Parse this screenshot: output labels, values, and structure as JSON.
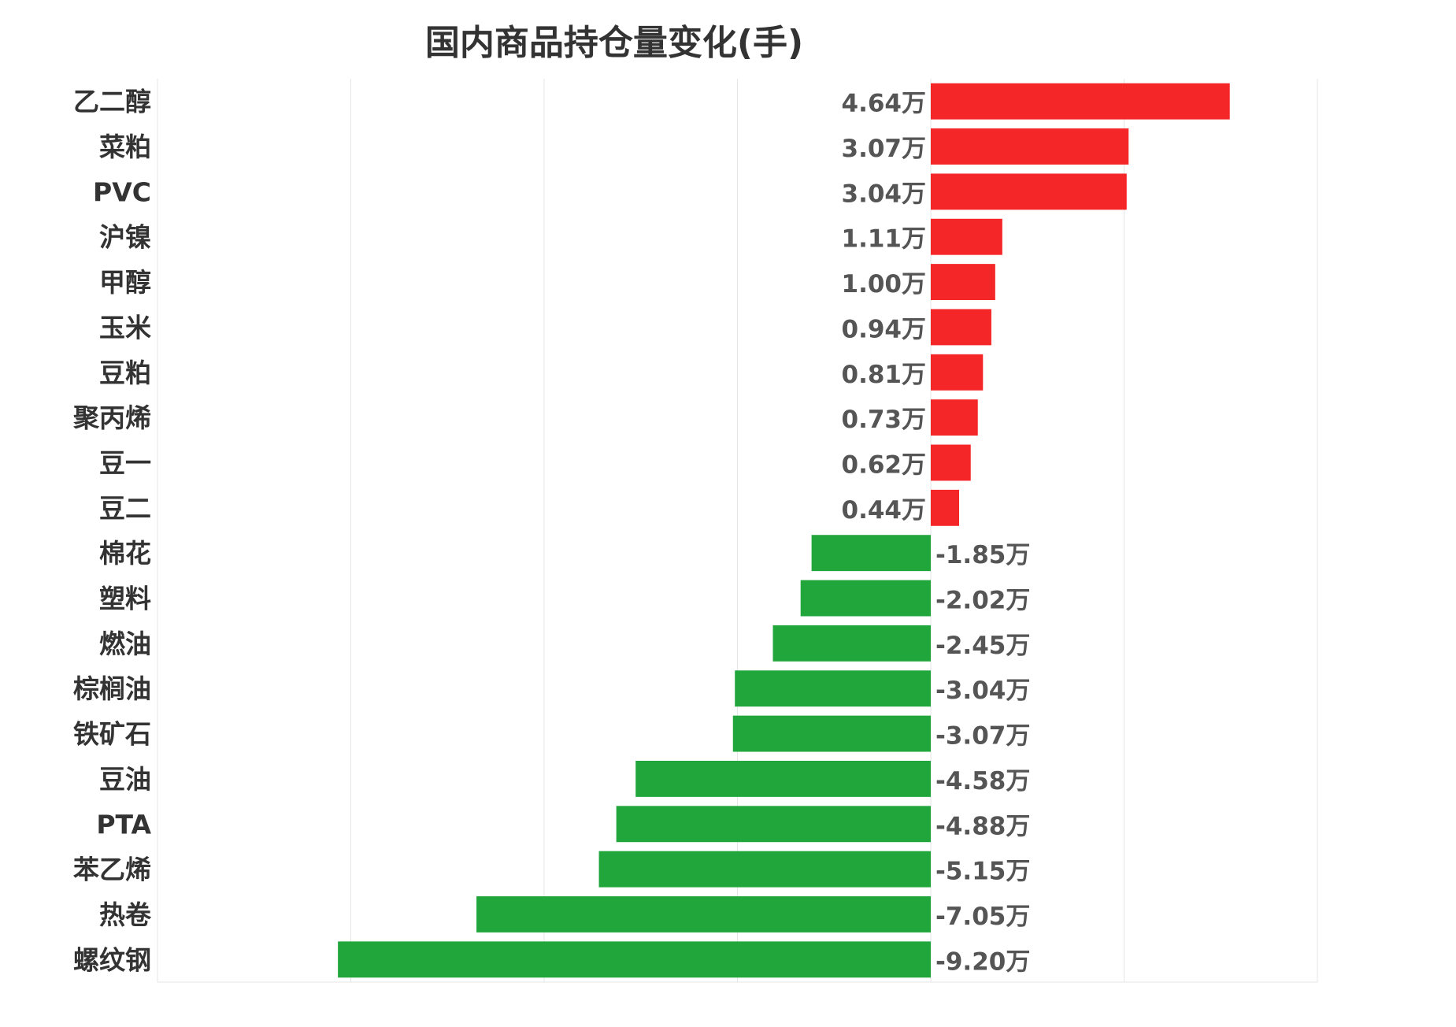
{
  "chart_data": {
    "type": "bar",
    "orientation": "horizontal",
    "title": "国内商品持仓量变化(手)",
    "unit_suffix": "万",
    "categories": [
      "乙二醇",
      "菜粕",
      "PVC",
      "沪镍",
      "甲醇",
      "玉米",
      "豆粕",
      "聚丙烯",
      "豆一",
      "豆二",
      "棉花",
      "塑料",
      "燃油",
      "棕榈油",
      "铁矿石",
      "豆油",
      "PTA",
      "苯乙烯",
      "热卷",
      "螺纹钢"
    ],
    "values": [
      4.64,
      3.07,
      3.04,
      1.11,
      1.0,
      0.94,
      0.81,
      0.73,
      0.62,
      0.44,
      -1.85,
      -2.02,
      -2.45,
      -3.04,
      -3.07,
      -4.58,
      -4.88,
      -5.15,
      -7.05,
      -9.2
    ],
    "value_labels": [
      "4.64万",
      "3.07万",
      "3.04万",
      "1.11万",
      "1.00万",
      "0.94万",
      "0.81万",
      "0.73万",
      "0.62万",
      "0.44万",
      "-1.85万",
      "-2.02万",
      "-2.45万",
      "-3.04万",
      "-3.07万",
      "-4.58万",
      "-4.88万",
      "-5.15万",
      "-7.05万",
      "-9.20万"
    ],
    "xlim": [
      -12,
      6
    ],
    "grid": true,
    "positive_color": "#F52628",
    "negative_color": "#21A63C"
  }
}
